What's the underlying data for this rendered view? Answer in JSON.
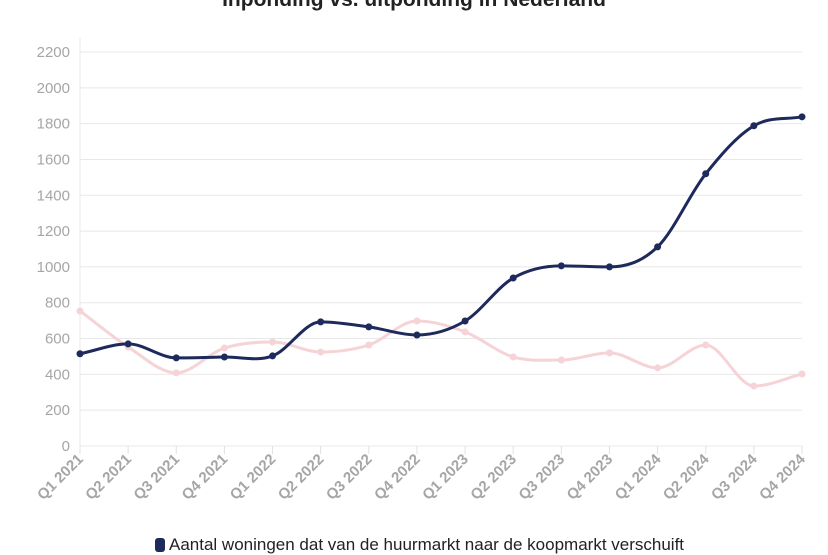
{
  "chart_data": {
    "type": "line",
    "title": "Inponding vs. uitponding in Nederland",
    "categories": [
      "Q1 2021",
      "Q2 2021",
      "Q3 2021",
      "Q4 2021",
      "Q1 2022",
      "Q2 2022",
      "Q3 2022",
      "Q4 2022",
      "Q1 2023",
      "Q2 2023",
      "Q3 2023",
      "Q4 2023",
      "Q1 2024",
      "Q2 2024",
      "Q3 2024",
      "Q4 2024"
    ],
    "ylim": [
      0,
      2200
    ],
    "yticks": [
      0,
      200,
      400,
      600,
      800,
      1000,
      1200,
      1400,
      1600,
      1800,
      2000,
      2200
    ],
    "grid": true,
    "legend_placement": "bottom",
    "series": [
      {
        "name": "Aantal woningen dat van de huurmarkt naar de koopmarkt verschuift",
        "color": "#1f2a5c",
        "values": [
          515,
          570,
          492,
          497,
          503,
          693,
          665,
          620,
          698,
          938,
          1006,
          1000,
          1112,
          1520,
          1788,
          1838
        ]
      },
      {
        "color": "#f5d3d6",
        "values": [
          754,
          553,
          408,
          547,
          581,
          525,
          564,
          698,
          637,
          497,
          480,
          520,
          436,
          564,
          335,
          402
        ]
      }
    ]
  }
}
